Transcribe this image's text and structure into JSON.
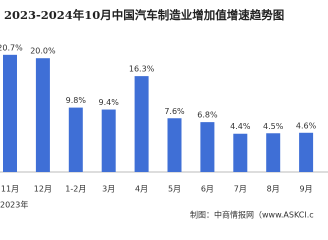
{
  "chart_data": {
    "type": "bar",
    "title": "2023-2024年10月中国汽车制造业增加值增速趋势图",
    "categories": [
      "11月",
      "12月",
      "1-2月",
      "3月",
      "4月",
      "5月",
      "6月",
      "7月",
      "8月",
      "9月"
    ],
    "values": [
      20.7,
      20.0,
      9.8,
      9.4,
      16.3,
      7.6,
      6.8,
      4.4,
      4.5,
      4.6
    ],
    "value_labels": [
      "20.7%",
      "20.0%",
      "9.8%",
      "9.4%",
      "16.3%",
      "7.6%",
      "6.8%",
      "4.4%",
      "4.5%",
      "4.6%"
    ],
    "color": "#3f6fd6",
    "ylim": [
      -3.5,
      25
    ],
    "year_label": "2023年",
    "source": "制图：中商情报网（www.ASKCI.c"
  }
}
